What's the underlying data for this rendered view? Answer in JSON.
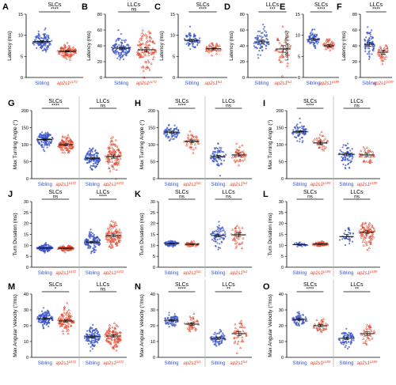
{
  "chart_data": [
    {
      "panel": "A",
      "type": "scatter",
      "ylabel": "Latency (ms)",
      "yticks": [
        0,
        5,
        10,
        15
      ],
      "ylim": [
        0,
        15
      ],
      "groups": [
        {
          "title": "SLCs",
          "sig": "****",
          "series": [
            {
              "label": "Sibling",
              "mut": "",
              "mean": 8.5,
              "sd": 1.2,
              "n": 120,
              "color": "#3a54c8"
            },
            {
              "label": "ap2s1",
              "mut": "p172",
              "mean": 6.2,
              "sd": 0.8,
              "n": 100,
              "color": "#e0482e"
            }
          ]
        }
      ]
    },
    {
      "panel": "B",
      "type": "scatter",
      "ylabel": "Latency (ms)",
      "yticks": [
        0,
        20,
        40,
        60,
        80
      ],
      "ylim": [
        0,
        80
      ],
      "groups": [
        {
          "title": "LLCs",
          "sig": "ns",
          "series": [
            {
              "label": "Sibling",
              "mut": "",
              "mean": 37,
              "sd": 6,
              "n": 120,
              "color": "#3a54c8"
            },
            {
              "label": "ap2s1",
              "mut": "p172",
              "mean": 35,
              "sd": 12,
              "n": 100,
              "color": "#e0482e"
            }
          ]
        }
      ]
    },
    {
      "panel": "C",
      "type": "scatter",
      "ylabel": "Latency (ms)",
      "yticks": [
        0,
        5,
        10,
        15
      ],
      "ylim": [
        0,
        15
      ],
      "groups": [
        {
          "title": "SLCs",
          "sig": "****",
          "series": [
            {
              "label": "Sibling",
              "mut": "",
              "mean": 8.8,
              "sd": 1.0,
              "n": 70,
              "color": "#3a54c8"
            },
            {
              "label": "ap2s1",
              "mut": "fu1",
              "mean": 6.8,
              "sd": 0.8,
              "n": 40,
              "color": "#e0482e"
            }
          ]
        }
      ]
    },
    {
      "panel": "D",
      "type": "scatter",
      "ylabel": "Latency (ms)",
      "yticks": [
        0,
        20,
        40,
        60,
        80
      ],
      "ylim": [
        0,
        80
      ],
      "groups": [
        {
          "title": "LLCs",
          "sig": "***",
          "series": [
            {
              "label": "Sibling",
              "mut": "",
              "mean": 45,
              "sd": 9,
              "n": 70,
              "color": "#3a54c8"
            },
            {
              "label": "ap2s1",
              "mut": "fu1",
              "mean": 36,
              "sd": 12,
              "n": 40,
              "color": "#e0482e"
            }
          ]
        }
      ]
    },
    {
      "panel": "E",
      "type": "scatter",
      "ylabel": "Latency (ms)",
      "yticks": [
        0,
        5,
        10,
        15
      ],
      "ylim": [
        0,
        15
      ],
      "groups": [
        {
          "title": "SLCs",
          "sig": "****",
          "series": [
            {
              "label": "Sibling",
              "mut": "",
              "mean": 9.0,
              "sd": 0.9,
              "n": 70,
              "color": "#3a54c8"
            },
            {
              "label": "ap2s1",
              "mut": "p199",
              "mean": 7.5,
              "sd": 0.8,
              "n": 35,
              "color": "#e0482e"
            }
          ]
        }
      ]
    },
    {
      "panel": "F",
      "type": "scatter",
      "ylabel": "Latency (ms)",
      "yticks": [
        0,
        20,
        40,
        60,
        80
      ],
      "ylim": [
        0,
        80
      ],
      "groups": [
        {
          "title": "LLCs",
          "sig": "****",
          "series": [
            {
              "label": "Sibling",
              "mut": "",
              "mean": 42,
              "sd": 9,
              "n": 70,
              "color": "#3a54c8"
            },
            {
              "label": "ap2s1",
              "mut": "p199",
              "mean": 32,
              "sd": 7,
              "n": 35,
              "color": "#e0482e"
            }
          ]
        }
      ]
    },
    {
      "panel": "G",
      "type": "scatter",
      "ylabel": "Max Turning Angle (°)",
      "yticks": [
        0,
        50,
        100,
        150,
        200
      ],
      "ylim": [
        0,
        200
      ],
      "groups": [
        {
          "title": "SLCs",
          "sig": "****",
          "series": [
            {
              "label": "Sibling",
              "mut": "",
              "mean": 115,
              "sd": 12,
              "n": 120,
              "color": "#3a54c8"
            },
            {
              "label": "ap2s1",
              "mut": "p172",
              "mean": 100,
              "sd": 12,
              "n": 100,
              "color": "#e0482e"
            }
          ]
        },
        {
          "title": "LLCs",
          "sig": "ns",
          "series": [
            {
              "label": "Sibling",
              "mut": "",
              "mean": 60,
              "sd": 14,
              "n": 120,
              "color": "#3a54c8"
            },
            {
              "label": "ap2s1",
              "mut": "p172",
              "mean": 65,
              "sd": 22,
              "n": 100,
              "color": "#e0482e"
            }
          ]
        }
      ]
    },
    {
      "panel": "H",
      "type": "scatter",
      "ylabel": "Max Turning Angle (°)",
      "yticks": [
        0,
        50,
        100,
        150,
        200
      ],
      "ylim": [
        0,
        200
      ],
      "groups": [
        {
          "title": "SLCs",
          "sig": "****",
          "series": [
            {
              "label": "Sibling",
              "mut": "",
              "mean": 137,
              "sd": 12,
              "n": 70,
              "color": "#3a54c8"
            },
            {
              "label": "ap2s1",
              "mut": "fu1",
              "mean": 110,
              "sd": 12,
              "n": 40,
              "color": "#e0482e"
            }
          ]
        },
        {
          "title": "LLCs",
          "sig": "ns",
          "series": [
            {
              "label": "Sibling",
              "mut": "",
              "mean": 65,
              "sd": 15,
              "n": 70,
              "color": "#3a54c8"
            },
            {
              "label": "ap2s1",
              "mut": "fu1",
              "mean": 70,
              "sd": 14,
              "n": 40,
              "color": "#e0482e"
            }
          ]
        }
      ]
    },
    {
      "panel": "I",
      "type": "scatter",
      "ylabel": "Max Turning Angle (°)",
      "yticks": [
        0,
        50,
        100,
        150,
        200
      ],
      "ylim": [
        0,
        200
      ],
      "groups": [
        {
          "title": "SLCs",
          "sig": "****",
          "series": [
            {
              "label": "Sibling",
              "mut": "",
              "mean": 138,
              "sd": 12,
              "n": 70,
              "color": "#3a54c8"
            },
            {
              "label": "ap2s1",
              "mut": "p199",
              "mean": 105,
              "sd": 12,
              "n": 35,
              "color": "#e0482e"
            }
          ]
        },
        {
          "title": "LLCs",
          "sig": "ns",
          "series": [
            {
              "label": "Sibling",
              "mut": "",
              "mean": 72,
              "sd": 16,
              "n": 70,
              "color": "#3a54c8"
            },
            {
              "label": "ap2s1",
              "mut": "p199",
              "mean": 70,
              "sd": 14,
              "n": 35,
              "color": "#e0482e"
            }
          ]
        }
      ]
    },
    {
      "panel": "J",
      "type": "scatter",
      "ylabel": "Turn Duration (ms)",
      "yticks": [
        0,
        5,
        10,
        15,
        20,
        25,
        30
      ],
      "ylim": [
        0,
        30
      ],
      "groups": [
        {
          "title": "SLCs",
          "sig": "ns",
          "series": [
            {
              "label": "Sibling",
              "mut": "",
              "mean": 8.8,
              "sd": 0.7,
              "n": 120,
              "color": "#3a54c8"
            },
            {
              "label": "ap2s1",
              "mut": "p172",
              "mean": 8.7,
              "sd": 0.6,
              "n": 100,
              "color": "#e0482e"
            }
          ]
        },
        {
          "title": "LLCs",
          "sig": "****",
          "series": [
            {
              "label": "Sibling",
              "mut": "",
              "mean": 11.5,
              "sd": 2.0,
              "n": 120,
              "color": "#3a54c8"
            },
            {
              "label": "ap2s1",
              "mut": "p172",
              "mean": 14.5,
              "sd": 3.0,
              "n": 100,
              "color": "#e0482e"
            }
          ]
        }
      ]
    },
    {
      "panel": "K",
      "type": "scatter",
      "ylabel": "Turn Duration (ms)",
      "yticks": [
        0,
        5,
        10,
        15,
        20,
        25,
        30
      ],
      "ylim": [
        0,
        30
      ],
      "groups": [
        {
          "title": "SLCs",
          "sig": "ns",
          "series": [
            {
              "label": "Sibling",
              "mut": "",
              "mean": 10.8,
              "sd": 0.6,
              "n": 70,
              "color": "#3a54c8"
            },
            {
              "label": "ap2s1",
              "mut": "fu1",
              "mean": 10.5,
              "sd": 0.5,
              "n": 40,
              "color": "#e0482e"
            }
          ]
        },
        {
          "title": "LLCs",
          "sig": "ns",
          "series": [
            {
              "label": "Sibling",
              "mut": "",
              "mean": 14.5,
              "sd": 2.5,
              "n": 70,
              "color": "#3a54c8"
            },
            {
              "label": "ap2s1",
              "mut": "fu1",
              "mean": 14.8,
              "sd": 2.8,
              "n": 40,
              "color": "#e0482e"
            }
          ]
        }
      ]
    },
    {
      "panel": "L",
      "type": "scatter",
      "ylabel": "Turn Duration (ms)",
      "yticks": [
        0,
        5,
        10,
        15,
        20,
        25,
        30
      ],
      "ylim": [
        0,
        30
      ],
      "groups": [
        {
          "title": "SLCs",
          "sig": "ns",
          "series": [
            {
              "label": "Sibling",
              "mut": "",
              "mean": 10.3,
              "sd": 0.5,
              "n": 30,
              "color": "#3a54c8"
            },
            {
              "label": "ap2s1",
              "mut": "p199",
              "mean": 10.6,
              "sd": 0.5,
              "n": 80,
              "color": "#e0482e"
            }
          ]
        },
        {
          "title": "LLCs",
          "sig": "ns",
          "series": [
            {
              "label": "Sibling",
              "mut": "",
              "mean": 14.0,
              "sd": 2.5,
              "n": 30,
              "color": "#3a54c8"
            },
            {
              "label": "ap2s1",
              "mut": "p199",
              "mean": 16.0,
              "sd": 3.0,
              "n": 80,
              "color": "#e0482e"
            }
          ]
        }
      ]
    },
    {
      "panel": "M",
      "type": "scatter",
      "ylabel": "Max Angular Velocity (°/ms)",
      "yticks": [
        0,
        10,
        20,
        30,
        40
      ],
      "ylim": [
        0,
        40
      ],
      "groups": [
        {
          "title": "SLCs",
          "sig": "*",
          "series": [
            {
              "label": "Sibling",
              "mut": "",
              "mean": 24.5,
              "sd": 2.5,
              "n": 120,
              "color": "#3a54c8"
            },
            {
              "label": "ap2s1",
              "mut": "p172",
              "mean": 23,
              "sd": 3,
              "n": 100,
              "color": "#e0482e"
            }
          ]
        },
        {
          "title": "LLCs",
          "sig": "ns",
          "series": [
            {
              "label": "Sibling",
              "mut": "",
              "mean": 13,
              "sd": 3,
              "n": 120,
              "color": "#3a54c8"
            },
            {
              "label": "ap2s1",
              "mut": "p172",
              "mean": 13.5,
              "sd": 4,
              "n": 100,
              "color": "#e0482e"
            }
          ]
        }
      ]
    },
    {
      "panel": "N",
      "type": "scatter",
      "ylabel": "Max Angular Velocity (°/ms)",
      "yticks": [
        0,
        10,
        20,
        30,
        40
      ],
      "ylim": [
        0,
        40
      ],
      "groups": [
        {
          "title": "SLCs",
          "sig": "****",
          "series": [
            {
              "label": "Sibling",
              "mut": "",
              "mean": 23.5,
              "sd": 2,
              "n": 70,
              "color": "#3a54c8"
            },
            {
              "label": "ap2s1",
              "mut": "fu1",
              "mean": 21,
              "sd": 2,
              "n": 40,
              "color": "#e0482e"
            }
          ]
        },
        {
          "title": "LLCs",
          "sig": "**",
          "series": [
            {
              "label": "Sibling",
              "mut": "",
              "mean": 12,
              "sd": 2.5,
              "n": 70,
              "color": "#3a54c8"
            },
            {
              "label": "ap2s1",
              "mut": "fu1",
              "mean": 15,
              "sd": 4,
              "n": 40,
              "color": "#e0482e"
            }
          ]
        }
      ]
    },
    {
      "panel": "O",
      "type": "scatter",
      "ylabel": "Max Angular Velocity (°/ms)",
      "yticks": [
        0,
        10,
        20,
        30,
        40
      ],
      "ylim": [
        0,
        40
      ],
      "groups": [
        {
          "title": "SLCs",
          "sig": "****",
          "series": [
            {
              "label": "Sibling",
              "mut": "",
              "mean": 24,
              "sd": 2,
              "n": 70,
              "color": "#3a54c8"
            },
            {
              "label": "ap2s1",
              "mut": "p199",
              "mean": 20,
              "sd": 2,
              "n": 35,
              "color": "#e0482e"
            }
          ]
        },
        {
          "title": "LLCs",
          "sig": "**",
          "series": [
            {
              "label": "Sibling",
              "mut": "",
              "mean": 12,
              "sd": 2.5,
              "n": 70,
              "color": "#3a54c8"
            },
            {
              "label": "ap2s1",
              "mut": "p199",
              "mean": 15,
              "sd": 3,
              "n": 35,
              "color": "#e0482e"
            }
          ]
        }
      ]
    }
  ]
}
